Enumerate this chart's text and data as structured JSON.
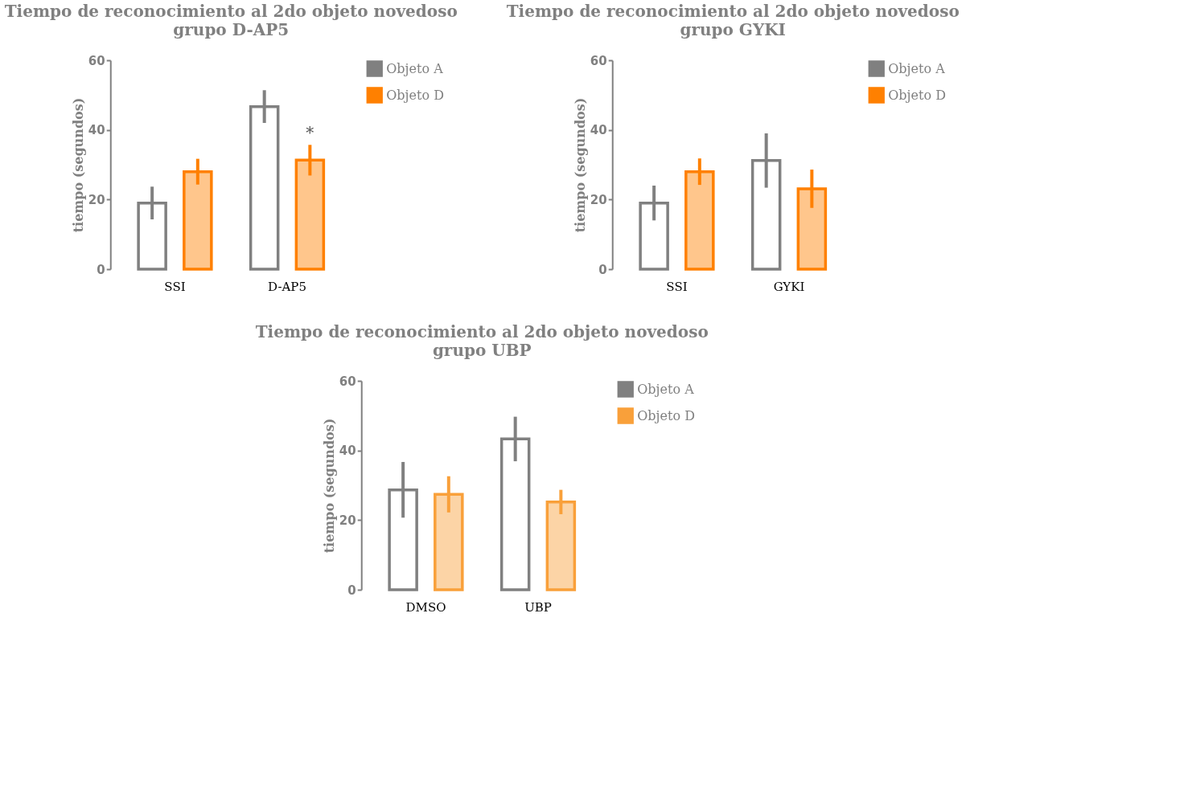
{
  "chart_data": [
    {
      "type": "bar",
      "title": "Tiempo de reconocimiento al 2do objeto novedoso",
      "subtitle": "grupo D-AP5",
      "ylabel": "tiempo (segundos)",
      "categories": [
        "SSI",
        "D-AP5"
      ],
      "series": [
        {
          "name": "Objeto A",
          "color": "#808080",
          "values": [
            19,
            46.7
          ],
          "errors": [
            4.7,
            4.7
          ]
        },
        {
          "name": "Objeto D",
          "color": "#ff8000",
          "values": [
            28,
            31.3
          ],
          "errors": [
            3.7,
            4.4
          ]
        }
      ],
      "ylim": [
        0,
        60
      ],
      "yticks": [
        0,
        20,
        40,
        60
      ],
      "grid": false,
      "legend": "top right",
      "annotations": [
        "*"
      ]
    },
    {
      "type": "bar",
      "title": "Tiempo de reconocimiento al 2do objeto novedoso",
      "subtitle": "grupo GYKI",
      "ylabel": "tiempo (segundos)",
      "categories": [
        "SSI",
        "GYKI"
      ],
      "series": [
        {
          "name": "Objeto A",
          "color": "#808080",
          "values": [
            19,
            31.2
          ],
          "errors": [
            5,
            7.8
          ]
        },
        {
          "name": "Objeto D",
          "color": "#ff8000",
          "values": [
            28,
            23.1
          ],
          "errors": [
            3.8,
            5.5
          ]
        }
      ],
      "ylim": [
        0,
        60
      ],
      "yticks": [
        0,
        20,
        40,
        60
      ],
      "grid": false,
      "legend": "top right"
    },
    {
      "type": "bar",
      "title": "Tiempo de reconocimiento al 2do objeto novedoso",
      "subtitle": "grupo UBP",
      "ylabel": "tiempo (segundos)",
      "categories": [
        "DMSO",
        "UBP"
      ],
      "series": [
        {
          "name": "Objeto A",
          "color": "#808080",
          "values": [
            28.7,
            43.3
          ],
          "errors": [
            8,
            6.4
          ]
        },
        {
          "name": "Objeto D",
          "color": "#f9a03a",
          "values": [
            27.4,
            25.2
          ],
          "errors": [
            5.2,
            3.5
          ]
        }
      ],
      "ylim": [
        0,
        60
      ],
      "yticks": [
        0,
        20,
        40,
        60
      ],
      "grid": false,
      "legend": "top right"
    }
  ]
}
